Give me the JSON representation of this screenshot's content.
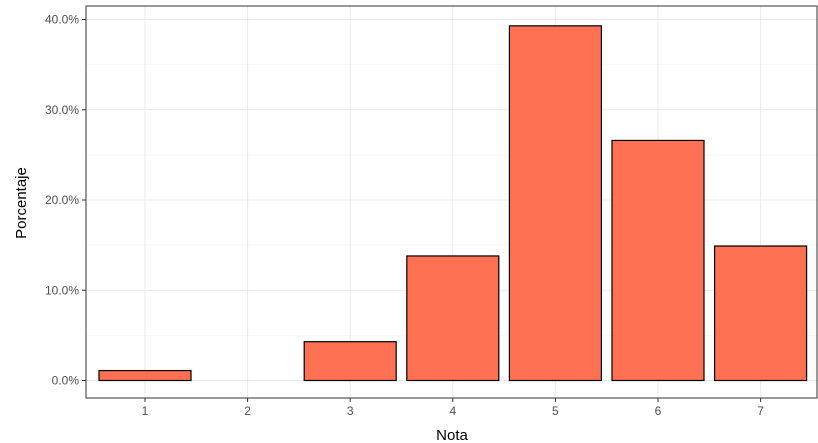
{
  "chart_data": {
    "type": "bar",
    "xlabel": "Nota",
    "ylabel": "Porcentaje",
    "categories": [
      "1",
      "2",
      "3",
      "4",
      "5",
      "6",
      "7"
    ],
    "values": [
      1.1,
      0.0,
      4.3,
      13.8,
      39.3,
      26.6,
      14.9
    ],
    "ylim": [
      0,
      40
    ],
    "ytick_values": [
      0,
      10,
      20,
      30,
      40
    ],
    "ytick_labels": [
      "0.0%",
      "10.0%",
      "20.0%",
      "30.0%",
      "40.0%"
    ],
    "value_unit": "percent",
    "grid": true,
    "legend": "none",
    "colors": {
      "bar_fill": "#FF7152",
      "bar_stroke": "#000000",
      "grid_major": "#EBEBEB",
      "grid_minor": "#F5F5F5",
      "panel_border": "#333333",
      "tick_text": "#4D4D4D"
    }
  }
}
